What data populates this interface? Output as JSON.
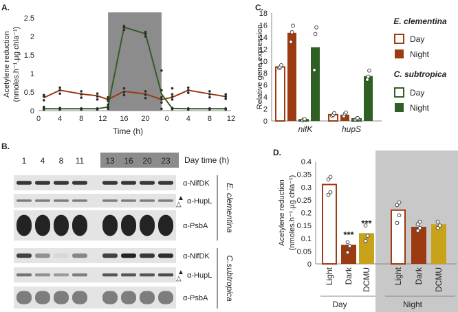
{
  "colors": {
    "ec": "#9c3a12",
    "cs": "#2f5f23",
    "dcmu": "#c9a21b",
    "shade_dark": "#8c8c8c",
    "shade_light": "#c8c8c8",
    "blot_bg": "#e4e4e4"
  },
  "panel_labels": {
    "a": "A.",
    "b": "B.",
    "c": "C.",
    "d": "D."
  },
  "chart_data": [
    {
      "id": "A",
      "type": "line",
      "title": "",
      "xlabel": "Time (h)",
      "ylabel": "Acetylene reduction",
      "ylabel2": "(nmoles.h⁻¹.µg chla⁻¹)",
      "ylim": [
        0,
        2.5
      ],
      "yticks": [
        "0",
        "0.5",
        "1",
        "1.5",
        "2",
        "2.5"
      ],
      "xtick_labels": [
        "0",
        "4",
        "8",
        "12",
        "16",
        "20",
        "0",
        "4",
        "8",
        "12"
      ],
      "shaded_x_range": [
        13,
        23
      ],
      "x": [
        1,
        4,
        8,
        11,
        13,
        16,
        20,
        23,
        25,
        28,
        32,
        35
      ],
      "series": [
        {
          "name": "E. clementina",
          "color_key": "ec",
          "values": [
            0.35,
            0.55,
            0.45,
            0.4,
            0.3,
            0.52,
            0.45,
            0.3,
            0.36,
            0.55,
            0.45,
            0.38
          ],
          "points": [
            [
              0.28,
              0.38,
              0.42
            ],
            [
              0.46,
              0.55,
              0.62
            ],
            [
              0.35,
              0.44,
              0.52
            ],
            [
              0.3,
              0.38,
              0.46
            ],
            [
              0.26,
              0.3,
              0.36
            ],
            [
              0.42,
              0.5,
              0.6
            ],
            [
              0.34,
              0.43,
              0.52
            ],
            [
              0.22,
              0.3,
              0.36
            ],
            [
              0.3,
              0.37,
              0.44
            ],
            [
              0.48,
              0.55,
              0.62
            ],
            [
              0.36,
              0.44,
              0.52
            ],
            [
              0.32,
              0.38,
              0.44
            ]
          ]
        },
        {
          "name": "C. subtropica",
          "color_key": "cs",
          "values": [
            0.05,
            0.05,
            0.05,
            0.05,
            0.1,
            2.25,
            2.07,
            0.45,
            0.06,
            0.05,
            0.05,
            0.05
          ],
          "points": [
            [
              0.03,
              0.06,
              0.1
            ],
            [
              0.03,
              0.05,
              0.07
            ],
            [
              0.03,
              0.05,
              0.06
            ],
            [
              0.03,
              0.05,
              0.06
            ],
            [
              0.05,
              0.1,
              0.16
            ],
            [
              2.18,
              2.25,
              2.28
            ],
            [
              2.0,
              2.07,
              2.12
            ],
            [
              0.05,
              0.55,
              1.08
            ],
            [
              0.04,
              0.07,
              0.6
            ],
            [
              0.03,
              0.05,
              0.06
            ],
            [
              0.03,
              0.05,
              0.06
            ],
            [
              0.03,
              0.05,
              0.06
            ]
          ]
        }
      ]
    },
    {
      "id": "C",
      "type": "bar",
      "ylabel": "Relative gene expression",
      "ylim": [
        0,
        18
      ],
      "yticks": [
        "0",
        "2",
        "4",
        "6",
        "8",
        "10",
        "12",
        "14",
        "16",
        "18"
      ],
      "categories": [
        "nifK",
        "hupS"
      ],
      "series": [
        {
          "name": "E. clementina Day",
          "color_key": "ec",
          "fill": "hollow",
          "values": [
            9.0,
            1.05
          ],
          "points": [
            [
              8.8,
              9.0,
              9.3
            ],
            [
              0.8,
              1.0,
              1.3
            ]
          ]
        },
        {
          "name": "E. clementina Night",
          "color_key": "ec",
          "fill": "solid",
          "values": [
            14.7,
            1.05
          ],
          "points": [
            [
              13.2,
              14.8,
              15.9
            ],
            [
              0.8,
              1.2,
              1.4
            ]
          ]
        },
        {
          "name": "C. subtropica Day",
          "color_key": "cs",
          "fill": "hollow",
          "values": [
            0.2,
            0.35
          ],
          "points": [
            [
              0.1,
              0.25,
              0.3
            ],
            [
              0.2,
              0.35,
              0.5
            ]
          ]
        },
        {
          "name": "C. subtropica Night",
          "color_key": "cs",
          "fill": "solid",
          "values": [
            12.3,
            7.5
          ],
          "points": [
            [
              8.5,
              14.5,
              15.6
            ],
            [
              6.9,
              7.4,
              8.4
            ]
          ]
        }
      ],
      "legend": [
        {
          "group": "E. clementina",
          "entries": [
            {
              "label": "Day",
              "color_key": "ec",
              "fill": "hollow"
            },
            {
              "label": "Night",
              "color_key": "ec",
              "fill": "solid"
            }
          ]
        },
        {
          "group": "C. subtropica",
          "entries": [
            {
              "label": "Day",
              "color_key": "cs",
              "fill": "hollow"
            },
            {
              "label": "Night",
              "color_key": "cs",
              "fill": "solid"
            }
          ]
        }
      ]
    },
    {
      "id": "D",
      "type": "bar",
      "ylabel": "Acetylene reduction",
      "ylabel2": "(nmoles.h⁻¹.µg chla⁻¹)",
      "ylim": [
        0,
        0.4
      ],
      "yticks": [
        "0",
        "0.05",
        "0.1",
        "0.15",
        "0.2",
        "0.25",
        "0.3",
        "0.35",
        "0.4"
      ],
      "categories": [
        "Light",
        "Dark",
        "DCMU",
        "Light",
        "Dark",
        "DCMU"
      ],
      "groups": [
        "Day",
        "Night"
      ],
      "shaded_group": "Night",
      "bars": [
        {
          "value": 0.31,
          "color_key": "ec",
          "fill": "hollow",
          "points": [
            0.27,
            0.28,
            0.33,
            0.34
          ],
          "sig": ""
        },
        {
          "value": 0.075,
          "color_key": "ec",
          "fill": "solid",
          "points": [
            0.045,
            0.07,
            0.085
          ],
          "sig": "***"
        },
        {
          "value": 0.12,
          "color_key": "dcmu",
          "fill": "solid",
          "points": [
            0.09,
            0.11,
            0.15
          ],
          "sig": "***"
        },
        {
          "value": 0.21,
          "color_key": "ec",
          "fill": "hollow",
          "points": [
            0.16,
            0.19,
            0.23,
            0.24
          ],
          "sig": ""
        },
        {
          "value": 0.145,
          "color_key": "ec",
          "fill": "solid",
          "points": [
            0.13,
            0.14,
            0.155,
            0.165
          ],
          "sig": ""
        },
        {
          "value": 0.155,
          "color_key": "dcmu",
          "fill": "solid",
          "points": [
            0.14,
            0.15,
            0.165
          ],
          "sig": ""
        }
      ]
    }
  ],
  "blot": {
    "header_times": [
      "1",
      "4",
      "8",
      "11",
      "13",
      "16",
      "20",
      "23"
    ],
    "header_label": "Day time (h)",
    "groups": [
      {
        "organism": "E. clementina",
        "rows": [
          {
            "label": "α-NifDK",
            "marker": "",
            "intensity": [
              0.9,
              0.9,
              0.9,
              0.9,
              0.9,
              0.9,
              0.9,
              0.9
            ],
            "thickness": 0.25
          },
          {
            "label": "α-HupL",
            "marker": "▲△",
            "intensity": [
              0.55,
              0.55,
              0.55,
              0.55,
              0.55,
              0.55,
              0.55,
              0.55
            ],
            "thickness": 0.18
          },
          {
            "label": "α-PsbA",
            "marker": "",
            "intensity": [
              1,
              1,
              1,
              1,
              1,
              1,
              1,
              1
            ],
            "thickness": 0.7
          }
        ]
      },
      {
        "organism": "C.subtropica",
        "rows": [
          {
            "label": "α-NifDK",
            "marker": "",
            "intensity": [
              0.85,
              0.45,
              0.1,
              0.5,
              0.85,
              1,
              0.9,
              0.95
            ],
            "thickness": 0.3
          },
          {
            "label": "α-HupL",
            "marker": "▲△",
            "intensity": [
              0.6,
              0.45,
              0.4,
              0.55,
              0.75,
              0.75,
              0.75,
              0.8
            ],
            "thickness": 0.2
          },
          {
            "label": "α-PsbA",
            "marker": "",
            "intensity": [
              0.55,
              0.55,
              0.55,
              0.55,
              0.55,
              0.55,
              0.55,
              0.55
            ],
            "thickness": 0.6
          }
        ]
      }
    ]
  }
}
